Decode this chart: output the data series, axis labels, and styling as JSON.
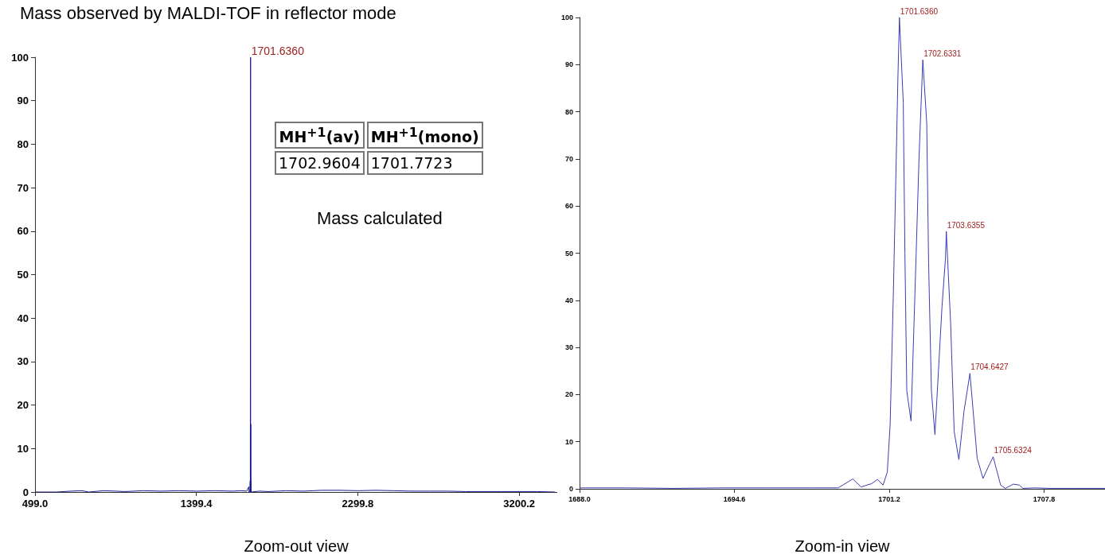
{
  "chart_data": [
    {
      "type": "line",
      "title": "Mass observed by MALDI-TOF in reflector mode",
      "xlabel": "Zoom-out view",
      "x": [
        499,
        620,
        700,
        760,
        800,
        880,
        950,
        1000,
        1100,
        1200,
        1300,
        1400,
        1500,
        1600,
        1650,
        1680,
        1692,
        1693,
        1698,
        1699.6,
        1700.2,
        1701,
        1701.6,
        1702.2,
        1702.6,
        1703.1,
        1703.6,
        1704.1,
        1704.6,
        1705.2,
        1750,
        1800,
        1900,
        2000,
        2100,
        2200,
        2300,
        2400,
        2500,
        2600,
        2700,
        2800,
        2900,
        3000,
        3100,
        3200,
        3300,
        3400
      ],
      "series": [
        {
          "color": "#1a1a8c",
          "values": [
            0,
            0,
            0.2,
            0.3,
            0,
            0.3,
            0.2,
            0.1,
            0.3,
            0.2,
            0.3,
            0.2,
            0.3,
            0.2,
            0.3,
            0.2,
            1.2,
            0,
            0,
            2.5,
            0,
            0,
            100,
            0,
            15.6,
            0,
            2.7,
            0,
            1,
            0,
            0.2,
            0.1,
            0.3,
            0.2,
            0.4,
            0.4,
            0.3,
            0.4,
            0.3,
            0.2,
            0.2,
            0.2,
            0.1,
            0.1,
            0.1,
            0.1,
            0.1,
            0
          ]
        }
      ],
      "xlim": [
        499,
        3413
      ],
      "xticks": [
        {
          "value": 499,
          "label": "499.0"
        },
        1399.4,
        2299.8,
        3200.2
      ],
      "ylim": [
        0,
        100
      ],
      "yticks": [
        0,
        10,
        20,
        30,
        40,
        50,
        60,
        70,
        80,
        90,
        100
      ],
      "grid": false,
      "marker": "none",
      "annotations": [
        "MH$^{+1}$(av)",
        "MH$^{+1}$(mono)",
        "1702.9604",
        "1701.7723",
        "Mass calculated",
        {
          "text": "1701.6360",
          "x": 1701.636,
          "y": 100
        }
      ]
    },
    {
      "type": "line",
      "xlabel": "Zoom-in view",
      "x": [
        1688,
        1690,
        1692,
        1694,
        1696,
        1698,
        1699.02,
        1699.65,
        1700.0,
        1700.45,
        1700.7,
        1700.94,
        1701.12,
        1701.24,
        1701.38,
        1701.5,
        1701.57,
        1701.636,
        1701.8,
        1701.87,
        1701.95,
        1702.13,
        1702.35,
        1702.47,
        1702.633,
        1702.8,
        1702.88,
        1703.0,
        1703.15,
        1703.45,
        1703.6,
        1703.6355,
        1703.82,
        1703.97,
        1704.17,
        1704.39,
        1704.6427,
        1704.95,
        1705.2,
        1705.4,
        1705.6324,
        1705.95,
        1706.15,
        1706.49,
        1706.75,
        1706.9,
        1707.42,
        1708.02,
        1709,
        1710.4
      ],
      "series": [
        {
          "color": "#3c3cb4",
          "values": [
            0.2,
            0.2,
            0.1,
            0.2,
            0.2,
            0.2,
            0.2,
            2.1,
            0.4,
            1.1,
            2,
            0.8,
            3.6,
            13.6,
            42,
            70,
            87,
            100,
            82,
            50,
            20.8,
            14.4,
            50,
            70,
            91,
            77.6,
            48,
            20.8,
            11.5,
            38.6,
            49,
            54.6,
            35,
            12.2,
            6.2,
            16.5,
            24.5,
            6.5,
            2.2,
            4.4,
            6.8,
            0.8,
            0.1,
            1,
            0.8,
            0.1,
            0.2,
            0.1,
            0.1,
            0.1
          ]
        }
      ],
      "xlim": [
        1688,
        1710.4
      ],
      "xticks": [
        {
          "value": 1688,
          "label": "1688.0"
        },
        1694.6,
        1701.2,
        1707.8
      ],
      "ylim": [
        0,
        100
      ],
      "yticks": [
        0,
        10,
        20,
        30,
        40,
        50,
        60,
        70,
        80,
        90,
        100
      ],
      "grid": false,
      "marker": "none",
      "annotations": [
        {
          "text": "1701.6360",
          "x": 1701.636,
          "y": 100
        },
        {
          "text": "1702.6331",
          "x": 1702.633,
          "y": 91
        },
        {
          "text": "1703.6355",
          "x": 1703.6355,
          "y": 54.6
        },
        {
          "text": "1704.6427",
          "x": 1704.6427,
          "y": 24.5
        },
        {
          "text": "1705.6324",
          "x": 1705.6324,
          "y": 6.8
        }
      ]
    }
  ]
}
